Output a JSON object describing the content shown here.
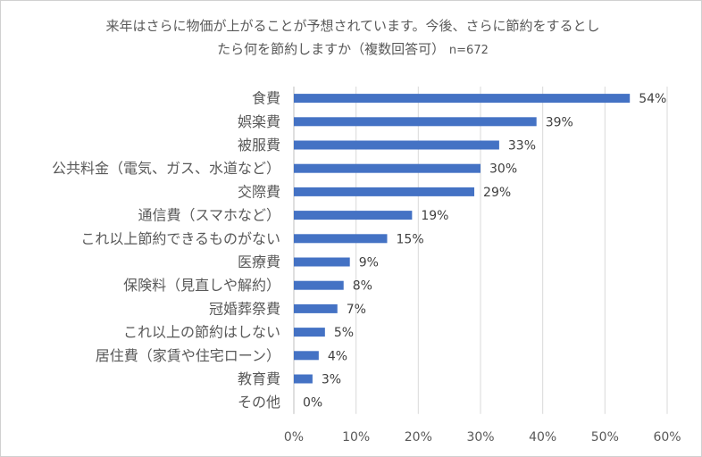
{
  "chart_data": {
    "type": "bar",
    "orientation": "horizontal",
    "title_line1": "来年はさらに物価が上がることが予想されています。今後、さらに節約をするとし",
    "title_line2": "たら何を節約しますか（複数回答可）",
    "sample_size": "n=672",
    "categories": [
      "食費",
      "娯楽費",
      "被服費",
      "公共料金（電気、ガス、水道など）",
      "交際費",
      "通信費（スマホなど）",
      "これ以上節約できるものがない",
      "医療費",
      "保険料（見直しや解約）",
      "冠婚葬祭費",
      "これ以上の節約はしない",
      "居住費（家賃や住宅ローン）",
      "教育費",
      "その他"
    ],
    "values": [
      54,
      39,
      33,
      30,
      29,
      19,
      15,
      9,
      8,
      7,
      5,
      4,
      3,
      0
    ],
    "value_labels": [
      "54%",
      "39%",
      "33%",
      "30%",
      "29%",
      "19%",
      "15%",
      "9%",
      "8%",
      "7%",
      "5%",
      "4%",
      "3%",
      "0%"
    ],
    "xlim": [
      0,
      60
    ],
    "x_ticks": [
      0,
      10,
      20,
      30,
      40,
      50,
      60
    ],
    "x_tick_labels": [
      "0%",
      "10%",
      "20%",
      "30%",
      "40%",
      "50%",
      "60%"
    ],
    "grid": true,
    "legend": "none",
    "bar_color": "#4472C4",
    "grid_color": "#d9d9d9",
    "text_color": "#595959"
  }
}
